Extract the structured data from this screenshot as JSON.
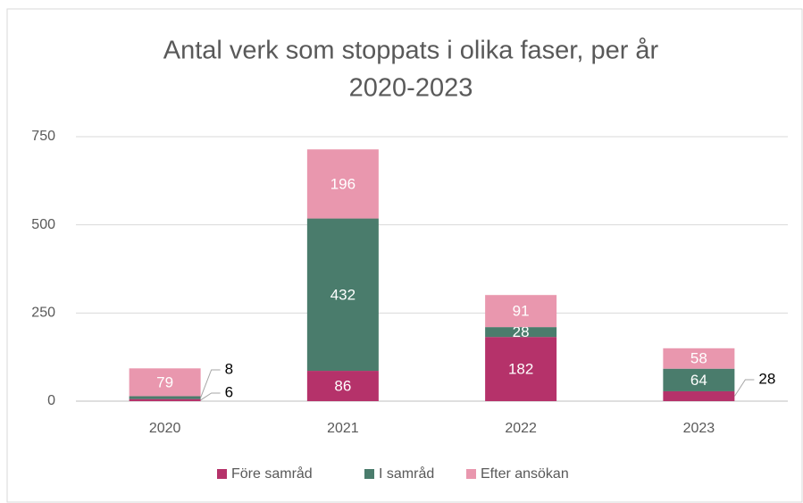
{
  "chart_data": {
    "type": "stacked_bar",
    "title": [
      "Antal verk som stoppats i olika faser, per år",
      "2020-2023"
    ],
    "categories": [
      "2020",
      "2021",
      "2022",
      "2023"
    ],
    "series": [
      {
        "name": "Före samråd",
        "color": "#b5326a",
        "values": [
          6,
          86,
          182,
          28
        ]
      },
      {
        "name": "I samråd",
        "color": "#4a7c6c",
        "values": [
          8,
          432,
          28,
          64
        ]
      },
      {
        "name": "Efter ansökan",
        "color": "#e997ae",
        "values": [
          79,
          196,
          91,
          58
        ]
      }
    ],
    "ylim": [
      0,
      750
    ],
    "yticks": [
      0,
      250,
      500,
      750
    ],
    "grid": true,
    "legend": "bottom"
  }
}
